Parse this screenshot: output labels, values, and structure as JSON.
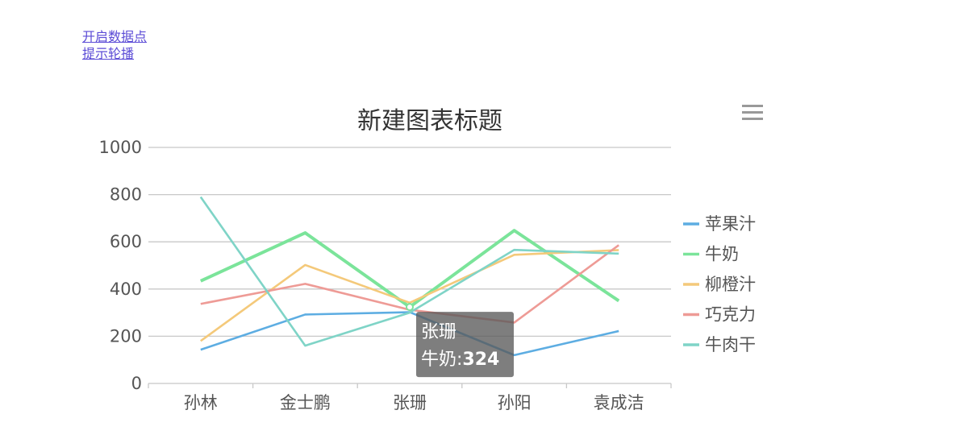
{
  "links": {
    "toggle_label": "开启数据点",
    "carousel_label": "提示轮播"
  },
  "chart_data": {
    "type": "line",
    "title": "新建图表标题",
    "categories": [
      "孙林",
      "金士鹏",
      "张珊",
      "孙阳",
      "袁成洁"
    ],
    "ylim": [
      0,
      1000
    ],
    "yticks": [
      0,
      200,
      400,
      600,
      800,
      1000
    ],
    "grid": true,
    "legend_position": "right",
    "series": [
      {
        "name": "苹果汁",
        "color": "#5dade2",
        "values": [
          143,
          292,
          302,
          120,
          222
        ]
      },
      {
        "name": "牛奶",
        "color": "#7be49a",
        "values": [
          434,
          638,
          324,
          648,
          350
        ]
      },
      {
        "name": "柳橙汁",
        "color": "#f4c97a",
        "values": [
          180,
          502,
          342,
          545,
          565
        ]
      },
      {
        "name": "巧克力",
        "color": "#ee9b96",
        "values": [
          337,
          422,
          312,
          258,
          586
        ]
      },
      {
        "name": "牛肉干",
        "color": "#7fd4c7",
        "values": [
          790,
          160,
          300,
          566,
          550
        ]
      }
    ],
    "tooltip": {
      "category": "张珊",
      "series_label": "牛奶:",
      "value": "324"
    }
  },
  "menu_icon": "hamburger-menu-icon"
}
